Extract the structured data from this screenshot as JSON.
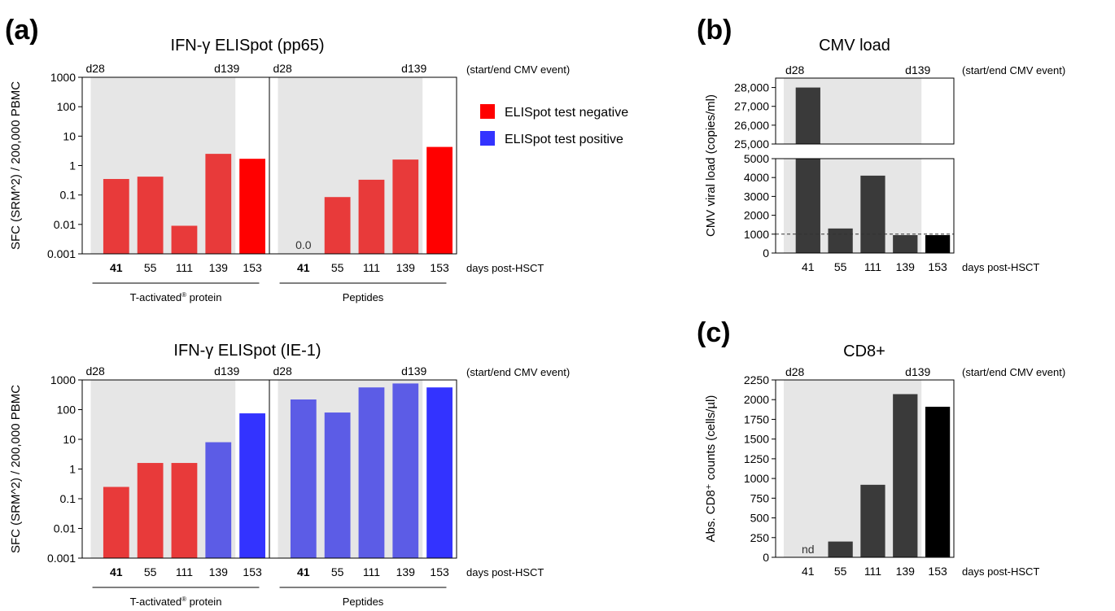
{
  "panel_letters": {
    "a": "(a)",
    "b": "(b)",
    "c": "(c)"
  },
  "legend": {
    "negative_label": "ELISpot test negative",
    "positive_label": "ELISpot test positive",
    "negative_color": "#ff0000",
    "positive_color": "#3333ff"
  },
  "colors": {
    "neg_bar": "#e83a3a",
    "neg_bar_last": "#ff0000",
    "pos_bar": "#5c5ce6",
    "pos_bar_last": "#3333ff",
    "dark_bar": "#3a3a3a",
    "black_bar": "#000000",
    "cmv_window": "#e6e6e6"
  },
  "common": {
    "event_note": "(start/end CMV event)",
    "xaxis_note": "days post-HSCT",
    "start_label": "d28",
    "end_label": "d139",
    "group_protein": "T-activated",
    "group_protein_sup": "®",
    "group_protein_suffix": " protein",
    "group_peptides": "Peptides"
  },
  "chart_data": [
    {
      "id": "pp65",
      "type": "bar",
      "title": "IFN-γ ELISpot (pp65)",
      "ylabel": "SFC (SRM^2) / 200,000 PBMC",
      "yscale": "log",
      "ylim": [
        0.001,
        1000
      ],
      "yticks": [
        "0.001",
        "0.01",
        "0.1",
        "1",
        "10",
        "100",
        "1000"
      ],
      "categories": [
        "41",
        "55",
        "111",
        "139",
        "153"
      ],
      "groups": [
        {
          "name": "T-activated® protein",
          "values": [
            0.35,
            0.42,
            0.009,
            2.5,
            1.7
          ],
          "status": [
            "negative",
            "negative",
            "negative",
            "negative",
            "negative"
          ]
        },
        {
          "name": "Peptides",
          "values": [
            0,
            0.085,
            0.33,
            1.6,
            4.3
          ],
          "status": [
            "negative",
            "negative",
            "negative",
            "negative",
            "negative"
          ],
          "annotations": [
            {
              "category": "41",
              "text": "0.0"
            }
          ]
        }
      ]
    },
    {
      "id": "ie1",
      "type": "bar",
      "title": "IFN-γ ELISpot (IE-1)",
      "ylabel": "SFC (SRM^2) / 200,000 PBMC",
      "yscale": "log",
      "ylim": [
        0.001,
        1000
      ],
      "yticks": [
        "0.001",
        "0.01",
        "0.1",
        "1",
        "10",
        "100",
        "1000"
      ],
      "categories": [
        "41",
        "55",
        "111",
        "139",
        "153"
      ],
      "groups": [
        {
          "name": "T-activated® protein",
          "values": [
            0.25,
            1.6,
            1.6,
            8,
            75
          ],
          "status": [
            "negative",
            "negative",
            "negative",
            "positive",
            "positive"
          ]
        },
        {
          "name": "Peptides",
          "values": [
            220,
            80,
            560,
            760,
            560
          ],
          "status": [
            "positive",
            "positive",
            "positive",
            "positive",
            "positive"
          ]
        }
      ]
    },
    {
      "id": "cmv",
      "type": "bar",
      "title": "CMV load",
      "ylabel": "CMV viral load (copies/ml)",
      "broken_axis": true,
      "lower_ylim": [
        0,
        5000
      ],
      "lower_yticks": [
        "0",
        "1000",
        "2000",
        "3000",
        "4000",
        "5000"
      ],
      "upper_ylim": [
        25000,
        28500
      ],
      "upper_yticks": [
        "25,000",
        "26,000",
        "27,000",
        "28,000"
      ],
      "threshold": 1000,
      "categories": [
        "41",
        "55",
        "111",
        "139",
        "153"
      ],
      "values": [
        28000,
        1300,
        4100,
        950,
        950
      ]
    },
    {
      "id": "cd8",
      "type": "bar",
      "title": "CD8+",
      "ylabel": "Abs. CD8⁺ counts (cells/µl)",
      "ylim": [
        0,
        2250
      ],
      "yticks": [
        "0",
        "250",
        "500",
        "750",
        "1000",
        "1250",
        "1500",
        "1750",
        "2000",
        "2250"
      ],
      "categories": [
        "41",
        "55",
        "111",
        "139",
        "153"
      ],
      "values": [
        null,
        200,
        920,
        2070,
        1910
      ],
      "annotations": [
        {
          "category": "41",
          "text": "nd"
        }
      ]
    }
  ]
}
